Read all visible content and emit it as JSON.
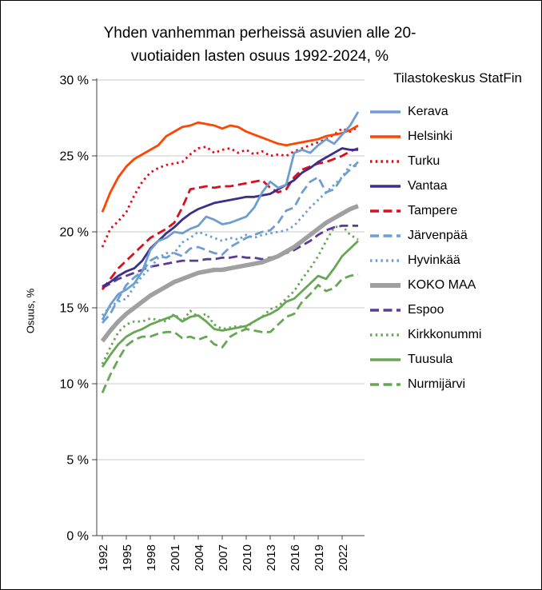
{
  "title": {
    "lines": [
      "Yhden vanhemman perheissä asuvien alle 20-",
      "vuotiaiden lasten osuus 1992-2024, %"
    ]
  },
  "chart_data": {
    "type": "line",
    "title": "Yhden vanhemman perheissä asuvien alle 20-vuotiaiden lasten osuus 1992-2024, %",
    "source": "Tilastokeskus StatFin",
    "xlabel": "",
    "ylabel": "Osuus, %",
    "ylim": [
      0,
      30
    ],
    "ytick_step": 5,
    "ytick_labels": [
      "0 %",
      "5 %",
      "10 %",
      "15 %",
      "20 %",
      "25 %",
      "30 %"
    ],
    "grid": true,
    "legend_position": "right",
    "x": [
      1992,
      1993,
      1994,
      1995,
      1996,
      1997,
      1998,
      1999,
      2000,
      2001,
      2002,
      2003,
      2004,
      2005,
      2006,
      2007,
      2008,
      2009,
      2010,
      2011,
      2012,
      2013,
      2014,
      2015,
      2016,
      2017,
      2018,
      2019,
      2020,
      2021,
      2022,
      2023,
      2024
    ],
    "xticks": [
      1992,
      1995,
      1998,
      2001,
      2004,
      2007,
      2010,
      2013,
      2016,
      2019,
      2022
    ],
    "series": [
      {
        "name": "Kerava",
        "color": "#6D9ECF",
        "style": "solid",
        "width": 2.8,
        "values": [
          14.2,
          15.2,
          15.9,
          16.2,
          16.6,
          17.4,
          18.8,
          19.4,
          19.6,
          20.0,
          19.9,
          20.2,
          20.4,
          21.0,
          20.8,
          20.5,
          20.6,
          20.8,
          21.0,
          21.6,
          22.6,
          23.3,
          22.9,
          23.1,
          25.2,
          25.4,
          25.2,
          25.7,
          26.1,
          25.8,
          26.4,
          27.0,
          27.9
        ]
      },
      {
        "name": "Helsinki",
        "color": "#FF4500",
        "style": "solid",
        "width": 2.8,
        "values": [
          21.3,
          22.6,
          23.6,
          24.3,
          24.8,
          25.1,
          25.4,
          25.7,
          26.3,
          26.6,
          26.9,
          27.0,
          27.2,
          27.1,
          27.0,
          26.8,
          27.0,
          26.9,
          26.6,
          26.4,
          26.2,
          26.0,
          25.8,
          25.7,
          25.8,
          25.9,
          26.0,
          26.1,
          26.3,
          26.4,
          26.5,
          26.7,
          27.0
        ]
      },
      {
        "name": "Turku",
        "color": "#EB0615",
        "style": "dotted",
        "width": 2.8,
        "values": [
          19.0,
          20.2,
          20.7,
          21.3,
          22.4,
          23.3,
          23.9,
          24.2,
          24.4,
          24.5,
          24.6,
          25.1,
          25.5,
          25.6,
          25.2,
          25.4,
          25.5,
          25.2,
          25.4,
          25.1,
          25.3,
          25.0,
          25.1,
          25.0,
          25.3,
          25.5,
          25.7,
          25.9,
          26.1,
          26.4,
          26.8,
          26.6,
          26.9
        ]
      },
      {
        "name": "Vantaa",
        "color": "#3B2E8C",
        "style": "solid",
        "width": 2.8,
        "values": [
          16.4,
          16.7,
          17.1,
          17.4,
          17.6,
          18.1,
          18.9,
          19.4,
          19.9,
          20.3,
          20.8,
          21.2,
          21.5,
          21.7,
          21.9,
          22.0,
          22.1,
          22.2,
          22.3,
          22.3,
          22.4,
          22.5,
          22.8,
          23.1,
          23.4,
          23.9,
          24.2,
          24.6,
          24.9,
          25.2,
          25.5,
          25.4,
          25.4
        ]
      },
      {
        "name": "Tampere",
        "color": "#DC0D1E",
        "style": "dashed",
        "width": 2.8,
        "values": [
          16.2,
          16.9,
          17.6,
          18.1,
          18.6,
          19.1,
          19.6,
          19.9,
          20.2,
          20.6,
          21.6,
          22.8,
          22.9,
          23.0,
          22.9,
          23.0,
          23.0,
          23.1,
          23.2,
          23.3,
          23.4,
          22.9,
          22.6,
          22.8,
          23.6,
          24.1,
          24.3,
          24.5,
          24.6,
          24.8,
          25.0,
          25.3,
          25.5
        ]
      },
      {
        "name": "Järvenpää",
        "color": "#6D9ECF",
        "style": "dashed",
        "width": 2.8,
        "values": [
          14.0,
          14.6,
          15.6,
          16.5,
          17.0,
          17.4,
          18.1,
          18.4,
          18.3,
          18.6,
          18.4,
          18.9,
          19.0,
          18.8,
          18.6,
          18.5,
          19.0,
          19.3,
          19.6,
          19.8,
          20.0,
          20.1,
          20.6,
          21.4,
          21.6,
          22.6,
          23.3,
          23.6,
          22.6,
          22.8,
          23.6,
          24.1,
          24.6
        ]
      },
      {
        "name": "Hyvinkää",
        "color": "#6D9ECF",
        "style": "dotted",
        "width": 2.8,
        "values": [
          14.5,
          15.1,
          15.4,
          15.6,
          16.4,
          17.1,
          17.6,
          18.3,
          18.6,
          18.6,
          19.3,
          19.6,
          20.0,
          19.8,
          19.6,
          19.4,
          19.6,
          19.5,
          19.8,
          19.6,
          19.8,
          19.9,
          20.0,
          20.1,
          20.4,
          21.0,
          21.6,
          22.1,
          22.6,
          23.1,
          23.6,
          24.4,
          24.3
        ]
      },
      {
        "name": "KOKO MAA",
        "color": "#A0A0A0",
        "style": "solid",
        "width": 5.5,
        "values": [
          12.8,
          13.5,
          14.1,
          14.6,
          15.0,
          15.4,
          15.8,
          16.1,
          16.4,
          16.7,
          16.9,
          17.1,
          17.3,
          17.4,
          17.5,
          17.5,
          17.6,
          17.7,
          17.8,
          17.9,
          18.0,
          18.2,
          18.4,
          18.7,
          19.0,
          19.4,
          19.8,
          20.2,
          20.6,
          20.9,
          21.2,
          21.5,
          21.7
        ]
      },
      {
        "name": "Espoo",
        "color": "#5C3A99",
        "style": "dashed",
        "width": 2.8,
        "values": [
          16.3,
          16.6,
          16.9,
          17.1,
          17.3,
          17.5,
          17.7,
          17.8,
          17.9,
          18.0,
          18.1,
          18.1,
          18.1,
          18.2,
          18.2,
          18.3,
          18.3,
          18.4,
          18.3,
          18.3,
          18.2,
          18.3,
          18.4,
          18.6,
          18.8,
          19.1,
          19.4,
          19.8,
          20.1,
          20.3,
          20.4,
          20.4,
          20.4
        ]
      },
      {
        "name": "Kirkkonummi",
        "color": "#67A655",
        "style": "dotted",
        "width": 2.8,
        "values": [
          11.3,
          12.4,
          13.4,
          13.9,
          14.1,
          14.1,
          14.3,
          14.2,
          14.1,
          14.6,
          14.1,
          14.8,
          14.4,
          14.6,
          13.9,
          13.6,
          13.7,
          13.8,
          13.7,
          14.1,
          14.4,
          14.9,
          15.1,
          15.6,
          16.1,
          16.9,
          17.6,
          18.4,
          19.4,
          20.3,
          20.4,
          19.8,
          19.5
        ]
      },
      {
        "name": "Tuusula",
        "color": "#67A655",
        "style": "solid",
        "width": 2.8,
        "values": [
          11.1,
          11.9,
          12.6,
          13.1,
          13.4,
          13.6,
          13.9,
          14.1,
          14.3,
          14.5,
          14.1,
          14.4,
          14.5,
          14.1,
          13.6,
          13.5,
          13.6,
          13.7,
          13.8,
          14.1,
          14.4,
          14.6,
          14.9,
          15.4,
          15.6,
          16.1,
          16.6,
          17.1,
          16.9,
          17.6,
          18.4,
          18.9,
          19.4
        ]
      },
      {
        "name": "Nurmijärvi",
        "color": "#67A655",
        "style": "dashed",
        "width": 2.8,
        "values": [
          9.4,
          10.6,
          11.6,
          12.5,
          12.9,
          13.1,
          13.1,
          13.3,
          13.4,
          13.4,
          13.0,
          13.1,
          12.9,
          13.1,
          12.6,
          12.4,
          13.1,
          13.4,
          13.6,
          13.5,
          13.4,
          13.4,
          13.9,
          14.4,
          14.6,
          15.4,
          15.9,
          16.5,
          16.1,
          16.3,
          16.9,
          17.1,
          17.2
        ]
      }
    ]
  }
}
